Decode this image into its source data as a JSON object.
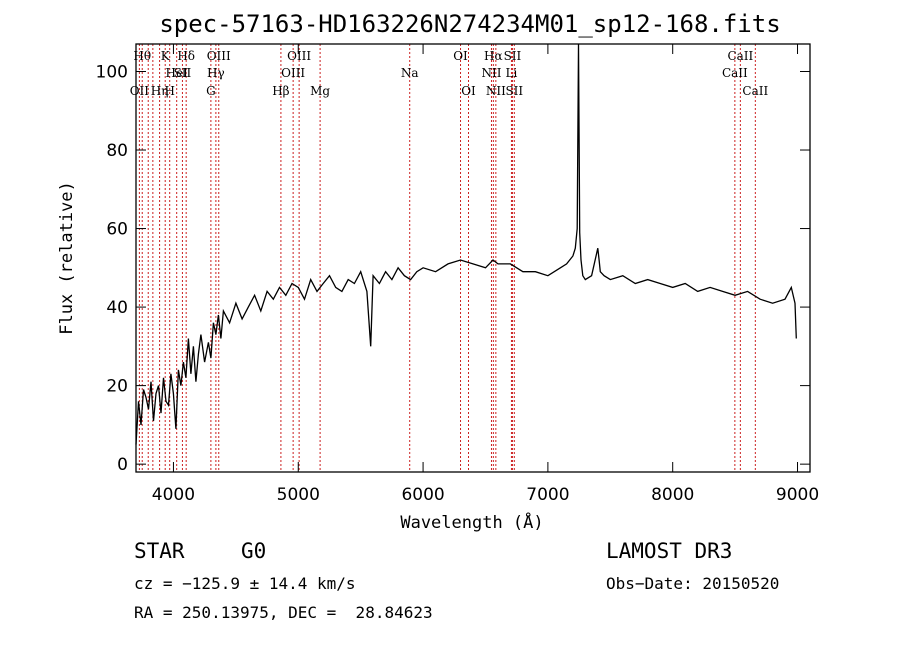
{
  "chart_data": {
    "type": "line",
    "title": "spec-57163-HD163226N274234M01_sp12-168.fits",
    "xlabel": "Wavelength (Å)",
    "ylabel": "Flux (relative)",
    "xlim": [
      3700,
      9100
    ],
    "ylim": [
      -2,
      107
    ],
    "xticks": [
      4000,
      5000,
      6000,
      7000,
      8000,
      9000
    ],
    "yticks": [
      0,
      20,
      40,
      60,
      80,
      100
    ],
    "grid": false,
    "series": [
      {
        "x": [
          3700,
          3720,
          3740,
          3760,
          3780,
          3800,
          3820,
          3840,
          3860,
          3880,
          3900,
          3920,
          3940,
          3960,
          3980,
          4000,
          4020,
          4040,
          4060,
          4080,
          4100,
          4120,
          4140,
          4160,
          4180,
          4200,
          4220,
          4250,
          4280,
          4300,
          4320,
          4340,
          4360,
          4380,
          4400,
          4450,
          4500,
          4550,
          4600,
          4650,
          4700,
          4750,
          4800,
          4850,
          4900,
          4950,
          5000,
          5050,
          5100,
          5150,
          5200,
          5250,
          5300,
          5350,
          5400,
          5450,
          5500,
          5550,
          5580,
          5600,
          5650,
          5700,
          5750,
          5800,
          5850,
          5900,
          5950,
          6000,
          6100,
          6200,
          6300,
          6400,
          6500,
          6560,
          6600,
          6700,
          6800,
          6900,
          7000,
          7100,
          7150,
          7200,
          7220,
          7235,
          7245,
          7255,
          7265,
          7280,
          7300,
          7350,
          7400,
          7410,
          7420,
          7450,
          7500,
          7600,
          7700,
          7800,
          7900,
          8000,
          8100,
          8200,
          8300,
          8400,
          8500,
          8600,
          8700,
          8800,
          8900,
          8950,
          8980,
          8990
        ],
        "values": [
          5,
          16,
          10,
          19,
          17,
          14,
          21,
          11,
          18,
          20,
          13,
          22,
          16,
          15,
          23,
          18,
          9,
          24,
          20,
          26,
          22,
          32,
          23,
          30,
          21,
          28,
          33,
          26,
          31,
          27,
          36,
          33,
          38,
          32,
          39,
          36,
          41,
          37,
          40,
          43,
          39,
          44,
          42,
          45,
          43,
          46,
          45,
          42,
          47,
          44,
          46,
          48,
          45,
          44,
          47,
          46,
          49,
          44,
          30,
          48,
          46,
          49,
          47,
          50,
          48,
          47,
          49,
          50,
          49,
          51,
          52,
          51,
          50,
          52,
          51,
          51,
          49,
          49,
          48,
          50,
          51,
          53,
          55,
          60,
          107,
          59,
          52,
          48,
          47,
          48,
          55,
          52,
          49,
          48,
          47,
          48,
          46,
          47,
          46,
          45,
          46,
          44,
          45,
          44,
          43,
          44,
          42,
          41,
          42,
          45,
          41,
          32
        ]
      }
    ],
    "lines": [
      {
        "w": 3727,
        "label": "OII",
        "row": 2
      },
      {
        "w": 3750,
        "label": "Hθ",
        "row": 0
      },
      {
        "w": 3798,
        "label": "",
        "row": 0
      },
      {
        "w": 3835,
        "label": "",
        "row": 1
      },
      {
        "w": 3889,
        "label": "Hη",
        "row": 2
      },
      {
        "w": 3934,
        "label": "K",
        "row": 0
      },
      {
        "w": 3970,
        "label": "H",
        "row": 2
      },
      {
        "w": 4026,
        "label": "HeI",
        "row": 1
      },
      {
        "w": 4072,
        "label": "SII",
        "row": 1
      },
      {
        "w": 4102,
        "label": "Hδ",
        "row": 0
      },
      {
        "w": 4300,
        "label": "G",
        "row": 2
      },
      {
        "w": 4340,
        "label": "Hγ",
        "row": 1
      },
      {
        "w": 4363,
        "label": "OIII",
        "row": 0
      },
      {
        "w": 4861,
        "label": "Hβ",
        "row": 2
      },
      {
        "w": 4959,
        "label": "OIII",
        "row": 1
      },
      {
        "w": 5007,
        "label": "OIII",
        "row": 0
      },
      {
        "w": 5175,
        "label": "Mg",
        "row": 2
      },
      {
        "w": 5893,
        "label": "Na",
        "row": 1
      },
      {
        "w": 6300,
        "label": "OI",
        "row": 0
      },
      {
        "w": 6364,
        "label": "OI",
        "row": 2
      },
      {
        "w": 6548,
        "label": "NII",
        "row": 1
      },
      {
        "w": 6563,
        "label": "Hα",
        "row": 0
      },
      {
        "w": 6583,
        "label": "NII",
        "row": 2
      },
      {
        "w": 6708,
        "label": "Li",
        "row": 1
      },
      {
        "w": 6716,
        "label": "SII",
        "row": 0
      },
      {
        "w": 6731,
        "label": "SII",
        "row": 2
      },
      {
        "w": 8498,
        "label": "CaII",
        "row": 1
      },
      {
        "w": 8542,
        "label": "CaII",
        "row": 0
      },
      {
        "w": 8662,
        "label": "CaII",
        "row": 2
      }
    ]
  },
  "info": {
    "class": "STAR",
    "subclass": "G0",
    "survey": "LAMOST DR3",
    "cz": "cz = −125.9 ± 14.4 km/s",
    "obs_date": "Obs−Date: 20150520",
    "radec": "RA = 250.13975, DEC =  28.84623"
  }
}
